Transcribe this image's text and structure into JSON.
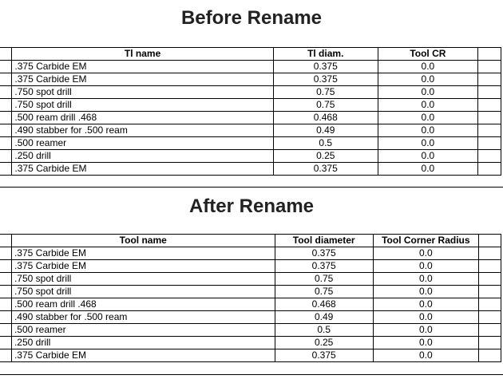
{
  "before": {
    "title": "Before Rename",
    "headers": [
      "Tl name",
      "Tl diam.",
      "Tool CR"
    ],
    "rows": [
      [
        ".375 Carbide EM",
        "0.375",
        "0.0"
      ],
      [
        ".375 Carbide EM",
        "0.375",
        "0.0"
      ],
      [
        ".750 spot drill",
        "0.75",
        "0.0"
      ],
      [
        ".750 spot drill",
        "0.75",
        "0.0"
      ],
      [
        ".500 ream drill .468",
        "0.468",
        "0.0"
      ],
      [
        ".490 stabber for .500 ream",
        "0.49",
        "0.0"
      ],
      [
        ".500 reamer",
        "0.5",
        "0.0"
      ],
      [
        ".250 drill",
        "0.25",
        "0.0"
      ],
      [
        ".375 Carbide EM",
        "0.375",
        "0.0"
      ]
    ]
  },
  "after": {
    "title": "After Rename",
    "headers": [
      "Tool name",
      "Tool diameter",
      "Tool Corner Radius"
    ],
    "rows": [
      [
        ".375 Carbide EM",
        "0.375",
        "0.0"
      ],
      [
        ".375 Carbide EM",
        "0.375",
        "0.0"
      ],
      [
        ".750 spot drill",
        "0.75",
        "0.0"
      ],
      [
        ".750 spot drill",
        "0.75",
        "0.0"
      ],
      [
        ".500 ream drill .468",
        "0.468",
        "0.0"
      ],
      [
        ".490 stabber for .500 ream",
        "0.49",
        "0.0"
      ],
      [
        ".500 reamer",
        "0.5",
        "0.0"
      ],
      [
        ".250 drill",
        "0.25",
        "0.0"
      ],
      [
        ".375 Carbide EM",
        "0.375",
        "0.0"
      ]
    ]
  }
}
